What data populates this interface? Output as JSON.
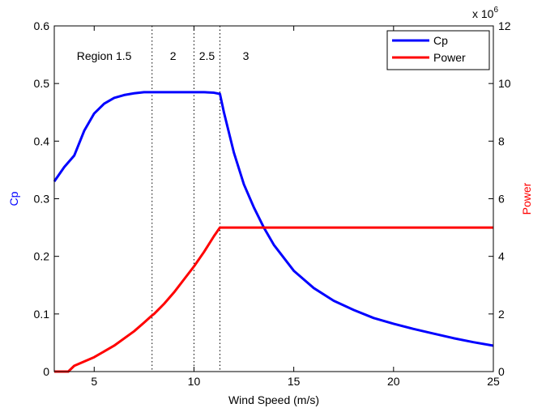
{
  "chart_data": {
    "type": "line",
    "title": "",
    "xlabel": "Wind Speed (m/s)",
    "ylabel_left": "Cp",
    "ylabel_right": "Power",
    "right_axis_exponent_label": "x 10",
    "right_axis_exponent_power": "6",
    "xlim": [
      3,
      25
    ],
    "ylim_left": [
      0,
      0.6
    ],
    "ylim_right": [
      0,
      12
    ],
    "x_ticks": [
      5,
      10,
      15,
      20,
      25
    ],
    "y_left_ticks": [
      0,
      0.1,
      0.2,
      0.3,
      0.4,
      0.5,
      0.6
    ],
    "y_right_ticks": [
      0,
      2,
      4,
      6,
      8,
      10,
      12
    ],
    "grid": false,
    "legend_position": "top-right",
    "colors": {
      "cp": "#0000ff",
      "power": "#ff0000"
    },
    "region_boundaries": [
      7.9,
      10.0,
      11.3
    ],
    "region_labels": [
      {
        "text": "Region 1.5",
        "x": 5.5
      },
      {
        "text": "2",
        "x": 8.95
      },
      {
        "text": "2.5",
        "x": 10.65
      },
      {
        "text": "3",
        "x": 12.6
      }
    ],
    "series": [
      {
        "name": "Cp",
        "axis": "left",
        "x": [
          3,
          3.5,
          4,
          4.5,
          5,
          5.5,
          6,
          6.5,
          7,
          7.5,
          7.9,
          8,
          9,
          10,
          10.5,
          11,
          11.3,
          11.5,
          12,
          12.5,
          13,
          13.5,
          14,
          15,
          16,
          17,
          18,
          19,
          20,
          21,
          22,
          23,
          24,
          25
        ],
        "y": [
          0.33,
          0.355,
          0.375,
          0.418,
          0.448,
          0.465,
          0.475,
          0.48,
          0.483,
          0.485,
          0.485,
          0.485,
          0.485,
          0.485,
          0.485,
          0.484,
          0.482,
          0.45,
          0.38,
          0.325,
          0.285,
          0.25,
          0.22,
          0.175,
          0.145,
          0.123,
          0.107,
          0.093,
          0.083,
          0.074,
          0.066,
          0.058,
          0.051,
          0.045
        ]
      },
      {
        "name": "Power",
        "axis": "right",
        "x": [
          3,
          3.5,
          3.7,
          4,
          5,
          6,
          7,
          7.5,
          7.9,
          8,
          8.5,
          9,
          9.5,
          10,
          10.5,
          11,
          11.3,
          12,
          14,
          16,
          18,
          20,
          22,
          24,
          25
        ],
        "y": [
          0,
          0,
          0,
          0.2,
          0.5,
          0.9,
          1.4,
          1.7,
          1.95,
          2.0,
          2.35,
          2.75,
          3.2,
          3.65,
          4.15,
          4.7,
          5.0,
          5.0,
          5.0,
          5.0,
          5.0,
          5.0,
          5.0,
          5.0,
          5.0
        ]
      }
    ]
  }
}
